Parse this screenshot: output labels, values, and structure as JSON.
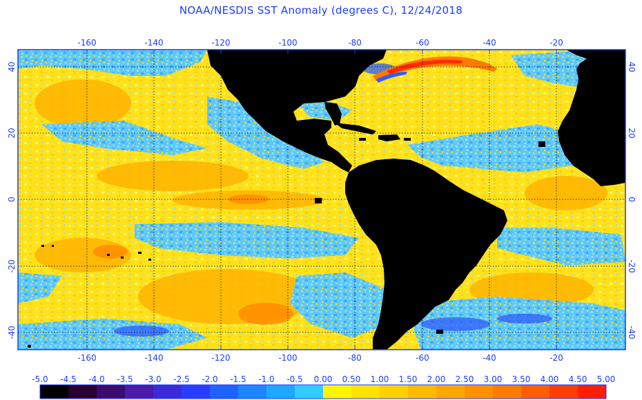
{
  "title": "NOAA/NESDIS SST Anomaly (degrees C), 12/24/2018",
  "lon_ticks": [
    "-160",
    "-140",
    "-120",
    "-100",
    "-80",
    "-60",
    "-40",
    "-20"
  ],
  "lat_ticks_left": [
    "40",
    "20",
    "0",
    "-20",
    "-40"
  ],
  "lat_ticks_right": [
    "40",
    "20",
    "0",
    "-20",
    "-40"
  ],
  "colorbar": {
    "labels": [
      "-5.0",
      "-4.5",
      "-4.0",
      "-3.5",
      "-3.0",
      "-2.5",
      "-2.0",
      "-1.5",
      "-1.0",
      "-0.5",
      "0.00",
      "0.50",
      "1.00",
      "1.50",
      "2.00",
      "2.50",
      "3.00",
      "3.50",
      "4.00",
      "4.50",
      "5.00"
    ],
    "colors": [
      "#000000",
      "#2a0030",
      "#3d0a6e",
      "#4b1aa8",
      "#3a2ad8",
      "#2a3cff",
      "#1f63ff",
      "#1e86ff",
      "#1ea8ff",
      "#33ccff",
      "#fff500",
      "#ffe200",
      "#ffd000",
      "#ffba00",
      "#ffa600",
      "#ff9000",
      "#ff7a00",
      "#ff5e00",
      "#ff3e00",
      "#ff1e00"
    ]
  },
  "colors": {
    "text": "#1a3cff",
    "land": "#000000",
    "frame": "#1a3cff",
    "grid": "#000000",
    "ocean_base": "#ffdf1a"
  }
}
